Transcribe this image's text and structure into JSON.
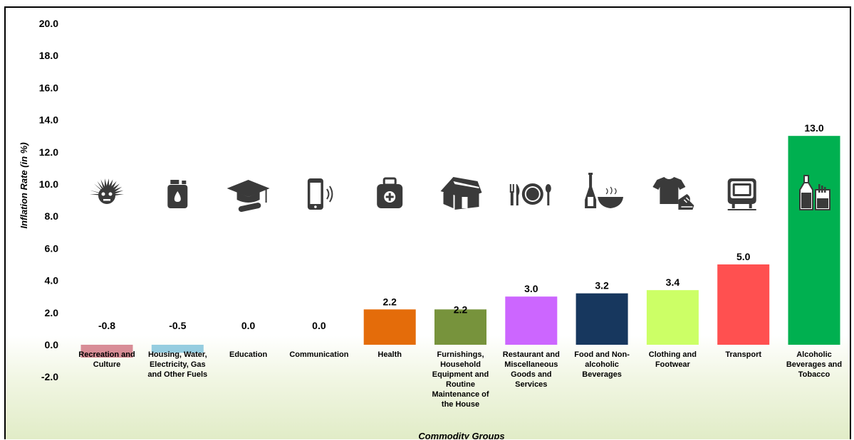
{
  "chart_data": {
    "type": "bar",
    "title": "",
    "xlabel": "Commodity Groups",
    "ylabel": "Inflation Rate (in %)",
    "ylim": [
      -2.0,
      20.0
    ],
    "yticks": [
      "20.0",
      "18.0",
      "16.0",
      "14.0",
      "12.0",
      "10.0",
      "8.0",
      "6.0",
      "4.0",
      "2.0",
      "0.0",
      "-2.0"
    ],
    "grid": false,
    "legend": "none",
    "categories": [
      "Recreation and Culture",
      "Housing, Water, Electricity, Gas and Other Fuels",
      "Education",
      "Communication",
      "Health",
      "Furnishings, Household Equipment and Routine Maintenance of the House",
      "Restaurant and Miscellaneous Goods and Services",
      "Food and Non-alcoholic Beverages",
      "Clothing and Footwear",
      "Transport",
      "Alcoholic Beverages and Tobacco"
    ],
    "category_label_lines": [
      [
        "Recreation and",
        "Culture"
      ],
      [
        "Housing, Water,",
        "Electricity, Gas",
        "and Other Fuels"
      ],
      [
        "Education"
      ],
      [
        "Communication"
      ],
      [
        "Health"
      ],
      [
        "Furnishings,",
        "Household",
        "Equipment and",
        "Routine",
        "Maintenance of",
        "the House"
      ],
      [
        "Restaurant and",
        "Miscellaneous",
        "Goods and",
        "Services"
      ],
      [
        "Food and Non-",
        "alcoholic",
        "Beverages"
      ],
      [
        "Clothing and",
        "Footwear"
      ],
      [
        "Transport"
      ],
      [
        "Alcoholic",
        "Beverages and",
        "Tobacco"
      ]
    ],
    "values": [
      -0.8,
      -0.5,
      0.0,
      0.0,
      2.2,
      2.2,
      3.0,
      3.2,
      3.4,
      5.0,
      13.0
    ],
    "data_labels": [
      "-0.8",
      "-0.5",
      "0.0",
      "0.0",
      "2.2",
      "2.2",
      "3.0",
      "3.2",
      "3.4",
      "5.0",
      "13.0"
    ],
    "colors": [
      "#d88d96",
      "#95cde0",
      "#ffffff",
      "#ffffff",
      "#e46c0a",
      "#77933c",
      "#cc66ff",
      "#17375e",
      "#ccff66",
      "#ff5050",
      "#00b050"
    ],
    "icons": [
      "mask-icon",
      "fuel-can-icon",
      "graduation-cap-icon",
      "mobile-phone-icon",
      "first-aid-kit-icon",
      "house-icon",
      "cutlery-plate-icon",
      "bottle-bowl-icon",
      "shirt-shoe-icon",
      "television-icon",
      "bottle-cigarettes-icon"
    ]
  }
}
